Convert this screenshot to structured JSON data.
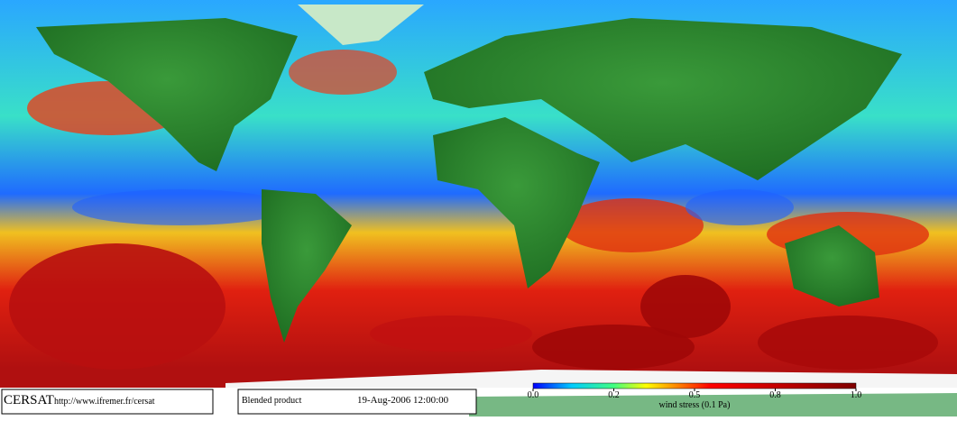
{
  "footer": {
    "logo": "CERSAT",
    "url": "http://www.ifremer.fr/cersat",
    "product": "Blended product",
    "date": "19-Aug-2006 12:00:00"
  },
  "colorbar": {
    "label": "wind stress (0.1 Pa)",
    "ticks": [
      {
        "value": 0,
        "label": "0.0"
      },
      {
        "value": 0.2,
        "label": "0.2"
      },
      {
        "value": 0.5,
        "label": "0.5"
      },
      {
        "value": 0.8,
        "label": "0.8"
      },
      {
        "value": 1,
        "label": "1.0"
      }
    ]
  }
}
